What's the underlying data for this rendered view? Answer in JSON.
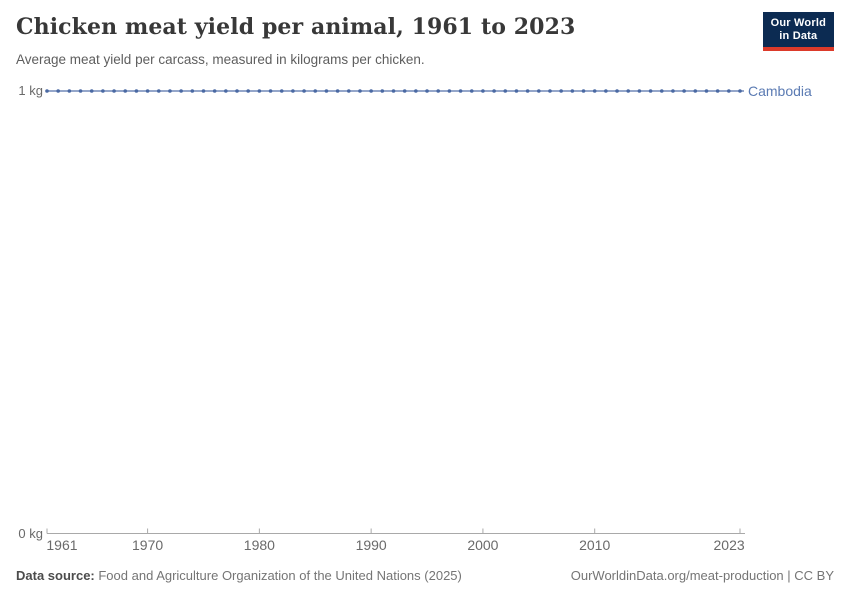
{
  "header": {
    "title": "Chicken meat yield per animal, 1961 to 2023",
    "subtitle": "Average meat yield per carcass, measured in kilograms per chicken."
  },
  "logo": {
    "line1": "Our World",
    "line2": "in Data",
    "bg_color": "#0c2b52",
    "accent_color": "#dc3a2a"
  },
  "footer": {
    "datasource_prefix": "Data source:",
    "datasource_text": " Food and Agriculture Organization of the United Nations (2025)",
    "link_text": "OurWorldinData.org/meat-production | CC BY"
  },
  "chart_data": {
    "type": "line",
    "title": "Chicken meat yield per animal, 1961 to 2023",
    "xlabel": "",
    "ylabel": "",
    "ylim": [
      0,
      1
    ],
    "grid": false,
    "legend_position": "end-of-line",
    "x_ticks": [
      1961,
      1970,
      1980,
      1990,
      2000,
      2010,
      2023
    ],
    "y_ticks": [
      {
        "value": 0,
        "label": "0 kg"
      },
      {
        "value": 1,
        "label": "1 kg"
      }
    ],
    "x": [
      1961,
      1962,
      1963,
      1964,
      1965,
      1966,
      1967,
      1968,
      1969,
      1970,
      1971,
      1972,
      1973,
      1974,
      1975,
      1976,
      1977,
      1978,
      1979,
      1980,
      1981,
      1982,
      1983,
      1984,
      1985,
      1986,
      1987,
      1988,
      1989,
      1990,
      1991,
      1992,
      1993,
      1994,
      1995,
      1996,
      1997,
      1998,
      1999,
      2000,
      2001,
      2002,
      2003,
      2004,
      2005,
      2006,
      2007,
      2008,
      2009,
      2010,
      2011,
      2012,
      2013,
      2014,
      2015,
      2016,
      2017,
      2018,
      2019,
      2020,
      2021,
      2022,
      2023
    ],
    "series": [
      {
        "name": "Cambodia",
        "line_color": "#7088b8",
        "dot_color": "#4a69a3",
        "label_color": "#5b7bb3",
        "values": [
          1,
          1,
          1,
          1,
          1,
          1,
          1,
          1,
          1,
          1,
          1,
          1,
          1,
          1,
          1,
          1,
          1,
          1,
          1,
          1,
          1,
          1,
          1,
          1,
          1,
          1,
          1,
          1,
          1,
          1,
          1,
          1,
          1,
          1,
          1,
          1,
          1,
          1,
          1,
          1,
          1,
          1,
          1,
          1,
          1,
          1,
          1,
          1,
          1,
          1,
          1,
          1,
          1,
          1,
          1,
          1,
          1,
          1,
          1,
          1,
          1,
          1,
          1
        ]
      }
    ],
    "axis_color": "#a9a9a9"
  }
}
